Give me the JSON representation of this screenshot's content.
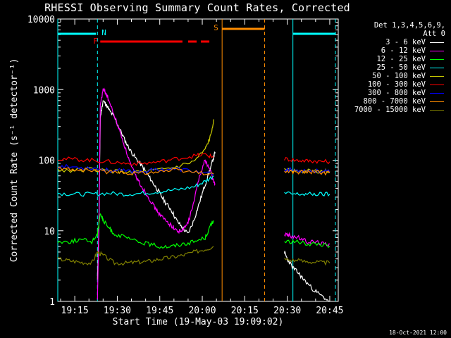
{
  "chart_data": {
    "type": "line",
    "title": "RHESSI Observing Summary Count Rates, Corrected",
    "xlabel": "Start Time (19-May-03 19:09:02)",
    "ylabel": "Corrected Count Rate (s⁻¹ detector⁻¹)",
    "yscale": "log",
    "ylim": [
      1,
      10000
    ],
    "xlim_minutes_after_19:09": [
      0,
      99
    ],
    "x_tick_labels": [
      "19:15",
      "19:30",
      "19:45",
      "20:00",
      "20:15",
      "20:30",
      "20:45"
    ],
    "x_ticks_minutes": [
      6,
      21,
      36,
      51,
      66,
      81,
      96
    ],
    "y_tick_labels": [
      "1",
      "10",
      "100",
      "1000",
      "10000"
    ],
    "y_ticks": [
      1,
      10,
      100,
      1000,
      10000
    ],
    "detectors_note": "Det 1,3,4,5,6,9, Att 0",
    "series": [
      {
        "name": "3 - 6 keV",
        "color": "#ffffff",
        "x": [
          14,
          14.5,
          15,
          16,
          17,
          18,
          20,
          22,
          24,
          26,
          28,
          30,
          32,
          34,
          36,
          38,
          40,
          42,
          44,
          46,
          48,
          50,
          52,
          54,
          55,
          55.5
        ],
        "y": [
          2,
          10,
          400,
          700,
          620,
          520,
          400,
          270,
          180,
          130,
          100,
          80,
          60,
          45,
          34,
          25,
          20,
          14,
          11,
          9,
          14,
          25,
          45,
          80,
          110,
          130
        ],
        "x2": [
          80,
          81,
          83,
          85,
          87,
          90,
          93,
          96
        ],
        "y2": [
          5,
          4,
          3,
          2.5,
          2,
          1.5,
          1.2,
          1
        ]
      },
      {
        "name": "6 - 12 keV",
        "color": "#ff00ff",
        "x": [
          14,
          14.5,
          15,
          16,
          17,
          18,
          20,
          22,
          24,
          26,
          28,
          30,
          32,
          34,
          36,
          38,
          40,
          42,
          44,
          46,
          48,
          50,
          52,
          54,
          55,
          55.5
        ],
        "y": [
          1,
          10,
          600,
          1000,
          900,
          700,
          420,
          250,
          140,
          80,
          55,
          40,
          30,
          22,
          17,
          14,
          12,
          10,
          10,
          13,
          25,
          60,
          100,
          70,
          50,
          45
        ],
        "x2": [
          80,
          82,
          85,
          88,
          91,
          94,
          96
        ],
        "y2": [
          9,
          8.5,
          8,
          7,
          7,
          6.5,
          6.5
        ]
      },
      {
        "name": "12 - 25 keV",
        "color": "#00ff00",
        "x": [
          0,
          4,
          8,
          12,
          14,
          15,
          16,
          18,
          20,
          24,
          28,
          32,
          36,
          40,
          44,
          48,
          52,
          54,
          55
        ],
        "y": [
          7,
          7,
          7.5,
          7,
          9,
          18,
          14,
          11,
          9,
          8,
          7,
          6.5,
          6,
          6,
          6.5,
          7,
          8,
          12,
          14
        ],
        "x2": [
          80,
          84,
          88,
          92,
          96
        ],
        "y2": [
          7,
          7,
          6.5,
          6.5,
          6
        ]
      },
      {
        "name": "25 - 50 keV",
        "color": "#00ffff",
        "x": [
          0,
          6,
          12,
          18,
          24,
          30,
          36,
          42,
          48,
          52,
          55
        ],
        "y": [
          34,
          33,
          33,
          34,
          33,
          34,
          36,
          38,
          42,
          50,
          60
        ],
        "x2": [
          80,
          84,
          88,
          92,
          96
        ],
        "y2": [
          34,
          33,
          33,
          33,
          33
        ]
      },
      {
        "name": "50 - 100 keV",
        "color": "#cccc00",
        "x": [
          0,
          6,
          12,
          18,
          24,
          30,
          36,
          42,
          48,
          52,
          54,
          55
        ],
        "y": [
          72,
          72,
          74,
          70,
          68,
          68,
          72,
          80,
          95,
          140,
          220,
          380
        ],
        "x2": [
          80,
          84,
          88,
          92,
          96
        ],
        "y2": [
          72,
          70,
          70,
          70,
          70
        ]
      },
      {
        "name": "100 - 300 keV",
        "color": "#ff0000",
        "x": [
          0,
          6,
          12,
          18,
          24,
          30,
          36,
          42,
          48,
          52,
          55
        ],
        "y": [
          105,
          103,
          100,
          95,
          90,
          90,
          95,
          105,
          115,
          120,
          110
        ],
        "x2": [
          80,
          84,
          88,
          92,
          96
        ],
        "y2": [
          105,
          100,
          98,
          97,
          95
        ]
      },
      {
        "name": "300 - 800 keV",
        "color": "#0000ff",
        "x": [
          0,
          6,
          12,
          18,
          24,
          30,
          36,
          42,
          48,
          55
        ],
        "y": [
          82,
          80,
          78,
          72,
          70,
          70,
          74,
          75,
          70,
          62
        ],
        "x2": [
          80,
          84,
          88,
          92,
          96
        ],
        "y2": [
          75,
          72,
          72,
          70,
          68
        ]
      },
      {
        "name": "800 - 7000 keV",
        "color": "#ff8c00",
        "x": [
          0,
          6,
          12,
          18,
          24,
          30,
          36,
          42,
          48,
          55
        ],
        "y": [
          76,
          74,
          72,
          68,
          66,
          66,
          70,
          72,
          68,
          64
        ],
        "x2": [
          80,
          84,
          88,
          92,
          96
        ],
        "y2": [
          70,
          68,
          68,
          67,
          66
        ]
      },
      {
        "name": "7000 - 15000 keV",
        "color": "#808000",
        "x": [
          0,
          4,
          8,
          12,
          14,
          16,
          20,
          24,
          28,
          32,
          36,
          40,
          44,
          48,
          52,
          55
        ],
        "y": [
          4,
          3.8,
          3.6,
          3.5,
          5,
          4.5,
          3.5,
          3.5,
          3.6,
          3.7,
          4,
          4.2,
          4.5,
          5,
          5.5,
          6
        ],
        "x2": [
          80,
          84,
          88,
          92,
          96
        ],
        "y2": [
          4,
          3.8,
          3.7,
          3.6,
          3.5
        ]
      }
    ],
    "annotations": [
      {
        "text": "N",
        "color": "#00ffff",
        "x_minutes": 14,
        "style": "night marker (dashed vertical)"
      },
      {
        "text": "F",
        "color": "#ff0000",
        "x_start": 15,
        "x_end": 53.5,
        "style": "flare flag bar"
      },
      {
        "text": "S",
        "color": "#ff8c00",
        "x_start": 58,
        "x_end": 73,
        "style": "SAA bar"
      }
    ]
  },
  "footer": {
    "timestamp": "18-Oct-2021 12:00"
  },
  "legend_header": [
    "Det 1,3,4,5,6,9,",
    "Att 0"
  ]
}
